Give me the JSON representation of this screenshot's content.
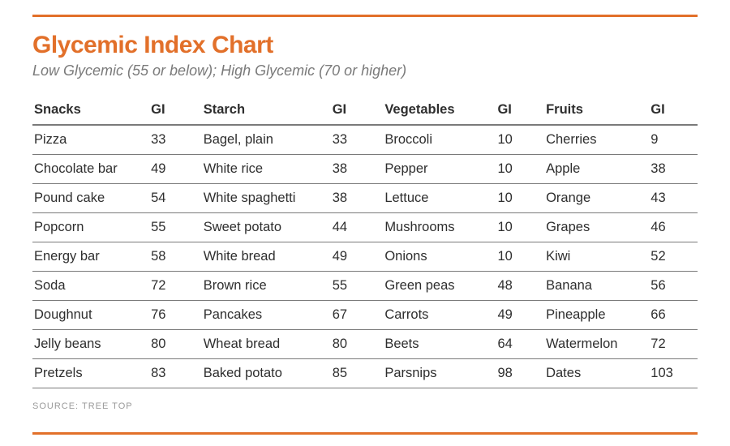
{
  "colors": {
    "accent": "#e2702a",
    "title": "#e2702a",
    "subtitle": "#7a7a7a",
    "text": "#2e2e2e",
    "rule_thick": "#7a7a7a",
    "rule_thin": "#7a7a7a",
    "source": "#9a9a9a",
    "background": "#ffffff"
  },
  "typography": {
    "title_fontsize": 30,
    "title_weight": 700,
    "subtitle_fontsize": 18,
    "subtitle_style": "italic",
    "body_fontsize": 16.5,
    "source_fontsize": 11
  },
  "title": "Glycemic Index Chart",
  "subtitle": "Low Glycemic (55 or below); High Glycemic (70 or higher)",
  "source_label": "SOURCE: TREE TOP",
  "table": {
    "type": "table",
    "columns": [
      "Snacks",
      "GI",
      "Starch",
      "GI",
      "Vegetables",
      "GI",
      "Fruits",
      "GI"
    ],
    "rows": [
      [
        "Pizza",
        "33",
        "Bagel, plain",
        "33",
        "Broccoli",
        "10",
        "Cherries",
        "9"
      ],
      [
        "Chocolate bar",
        "49",
        "White rice",
        "38",
        "Pepper",
        "10",
        "Apple",
        "38"
      ],
      [
        "Pound cake",
        "54",
        "White spaghetti",
        "38",
        "Lettuce",
        "10",
        "Orange",
        "43"
      ],
      [
        "Popcorn",
        "55",
        "Sweet potato",
        "44",
        "Mushrooms",
        "10",
        "Grapes",
        "46"
      ],
      [
        "Energy bar",
        "58",
        "White bread",
        "49",
        "Onions",
        "10",
        "Kiwi",
        "52"
      ],
      [
        "Soda",
        "72",
        "Brown rice",
        "55",
        "Green peas",
        "48",
        "Banana",
        "56"
      ],
      [
        "Doughnut",
        "76",
        "Pancakes",
        "67",
        "Carrots",
        "49",
        "Pineapple",
        "66"
      ],
      [
        "Jelly beans",
        "80",
        "Wheat bread",
        "80",
        "Beets",
        "64",
        "Watermelon",
        "72"
      ],
      [
        "Pretzels",
        "83",
        "Baked potato",
        "85",
        "Parsnips",
        "98",
        "Dates",
        "103"
      ]
    ]
  }
}
